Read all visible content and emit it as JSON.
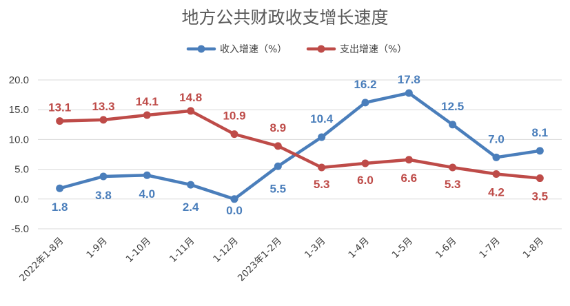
{
  "chart_data": {
    "type": "line",
    "title": "地方公共财政收支增长速度",
    "categories": [
      "2022年1-8月",
      "1-9月",
      "1-10月",
      "1-11月",
      "1-12月",
      "2023年1-2月",
      "1-3月",
      "1-4月",
      "1-5月",
      "1-6月",
      "1-7月",
      "1-8月"
    ],
    "series": [
      {
        "name": "收入增速（%）",
        "color": "#4a7ebb",
        "values": [
          1.8,
          3.8,
          4.0,
          2.4,
          0.0,
          5.5,
          10.4,
          16.2,
          17.8,
          12.5,
          7.0,
          8.1
        ],
        "labels": [
          "1.8",
          "3.8",
          "4.0",
          "2.4",
          "0.0",
          "5.5",
          "10.4",
          "16.2",
          "17.8",
          "12.5",
          "7.0",
          "8.1"
        ]
      },
      {
        "name": "支出增速（%）",
        "color": "#be4b48",
        "values": [
          13.1,
          13.3,
          14.1,
          14.8,
          10.9,
          8.9,
          5.3,
          6.0,
          6.6,
          5.3,
          4.2,
          3.5
        ],
        "labels": [
          "13.1",
          "13.3",
          "14.1",
          "14.8",
          "10.9",
          "8.9",
          "5.3",
          "6.0",
          "6.6",
          "5.3",
          "4.2",
          "3.5"
        ]
      }
    ],
    "ylim": [
      -5,
      20
    ],
    "yticks": [
      "20.0",
      "15.0",
      "10.0",
      "5.0",
      "0.0",
      "-5.0"
    ],
    "ytick_values": [
      20,
      15,
      10,
      5,
      0,
      -5
    ],
    "legend_position": "top-center",
    "grid": true
  }
}
